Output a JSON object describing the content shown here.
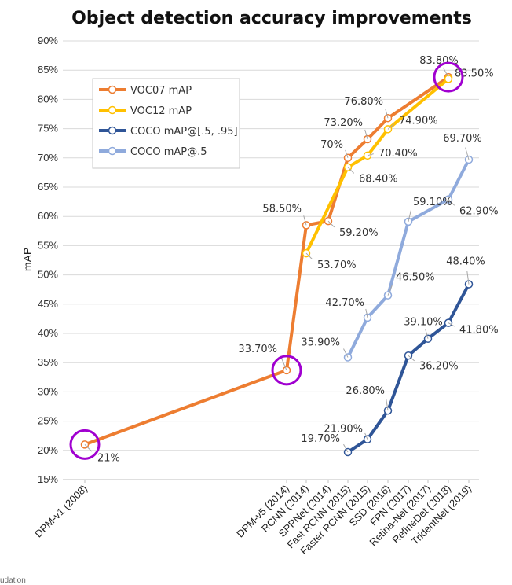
{
  "chart_data": {
    "type": "line",
    "title": "Object detection accuracy improvements",
    "xlabel": "",
    "ylabel": "mAP",
    "ylim": [
      15,
      90
    ],
    "yticks": [
      "15%",
      "20%",
      "25%",
      "30%",
      "35%",
      "40%",
      "45%",
      "50%",
      "55%",
      "60%",
      "65%",
      "70%",
      "75%",
      "80%",
      "85%",
      "90%"
    ],
    "categories": [
      "DPM-v1 (2008)",
      "DPM-v5 (2014)",
      "RCNN (2014)",
      "SPPNet (2014)",
      "Fast RCNN (2015)",
      "Faster RCNN (2015)",
      "SSD (2016)",
      "FPN (2017)",
      "Retina-Net (2017)",
      "RefineDet (2018)",
      "TridentNet (2019)"
    ],
    "series": [
      {
        "name": "VOC07 mAP",
        "color": "#ED7D31",
        "values": [
          21,
          33.7,
          58.5,
          59.2,
          70,
          73.2,
          76.8,
          null,
          null,
          83.8,
          null
        ],
        "labels": [
          "21%",
          "33.70%",
          "58.50%",
          "59.20%",
          "70%",
          "73.20%",
          "76.80%",
          "",
          "",
          "83.80%",
          ""
        ]
      },
      {
        "name": "VOC12 mAP",
        "color": "#FFC000",
        "values": [
          null,
          null,
          53.7,
          null,
          68.4,
          70.4,
          74.9,
          null,
          null,
          83.5,
          null
        ],
        "labels": [
          "",
          "",
          "53.70%",
          "",
          "68.40%",
          "70.40%",
          "74.90%",
          "",
          "",
          "83.50%",
          ""
        ]
      },
      {
        "name": "COCO mAP@[.5, .95]",
        "color": "#2F5597",
        "values": [
          null,
          null,
          null,
          null,
          19.7,
          21.9,
          26.8,
          36.2,
          39.1,
          41.8,
          48.4
        ],
        "labels": [
          "",
          "",
          "",
          "",
          "19.70%",
          "21.90%",
          "26.80%",
          "36.20%",
          "39.10%",
          "41.80%",
          "48.40%"
        ]
      },
      {
        "name": "COCO mAP@.5",
        "color": "#8FAADC",
        "values": [
          null,
          null,
          null,
          null,
          35.9,
          42.7,
          46.5,
          59.1,
          null,
          62.9,
          69.7
        ],
        "labels": [
          "",
          "",
          "",
          "",
          "35.90%",
          "42.70%",
          "46.50%",
          "59.10%",
          "",
          "62.90%",
          "69.70%"
        ]
      }
    ],
    "highlight_circles": [
      {
        "category": "DPM-v1 (2008)",
        "value": 21
      },
      {
        "category": "DPM-v5 (2014)",
        "value": 33.7
      },
      {
        "category": "RefineDet (2018)",
        "value": 83.8
      }
    ],
    "highlight_color": "#A000D0",
    "legend_position": "top-left"
  },
  "footer_text": "udation"
}
